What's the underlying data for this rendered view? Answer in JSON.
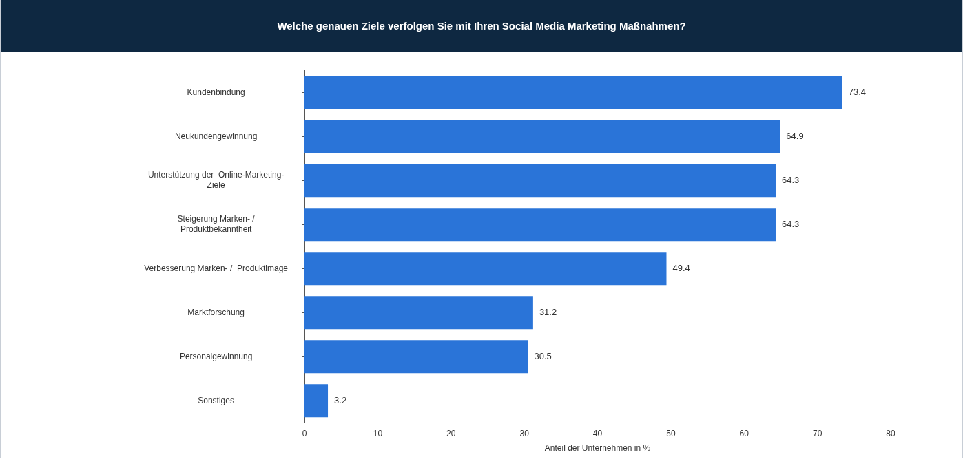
{
  "chart_data": {
    "type": "bar",
    "orientation": "horizontal",
    "title": "Welche genauen Ziele verfolgen Sie mit Ihren Social Media Marketing Maßnahmen?",
    "xlabel": "Anteil der Unternehmen in %",
    "categories": [
      "Kundenbindung",
      "Neukundengewinnung",
      "Unterstützung der  Online-Marketing-\nZiele",
      "Steigerung Marken- /\nProduktbekanntheit",
      "Verbesserung Marken- /  Produktimage",
      "Marktforschung",
      "Personalgewinnung",
      "Sonstiges"
    ],
    "values": [
      73.4,
      64.9,
      64.3,
      64.3,
      49.4,
      31.2,
      30.5,
      3.2
    ],
    "color": "#2a74d8",
    "xlim": [
      0,
      80
    ],
    "xticks": [
      0,
      10,
      20,
      30,
      40,
      50,
      60,
      70,
      80
    ],
    "grid": false,
    "legend": false,
    "data_labels": true
  }
}
